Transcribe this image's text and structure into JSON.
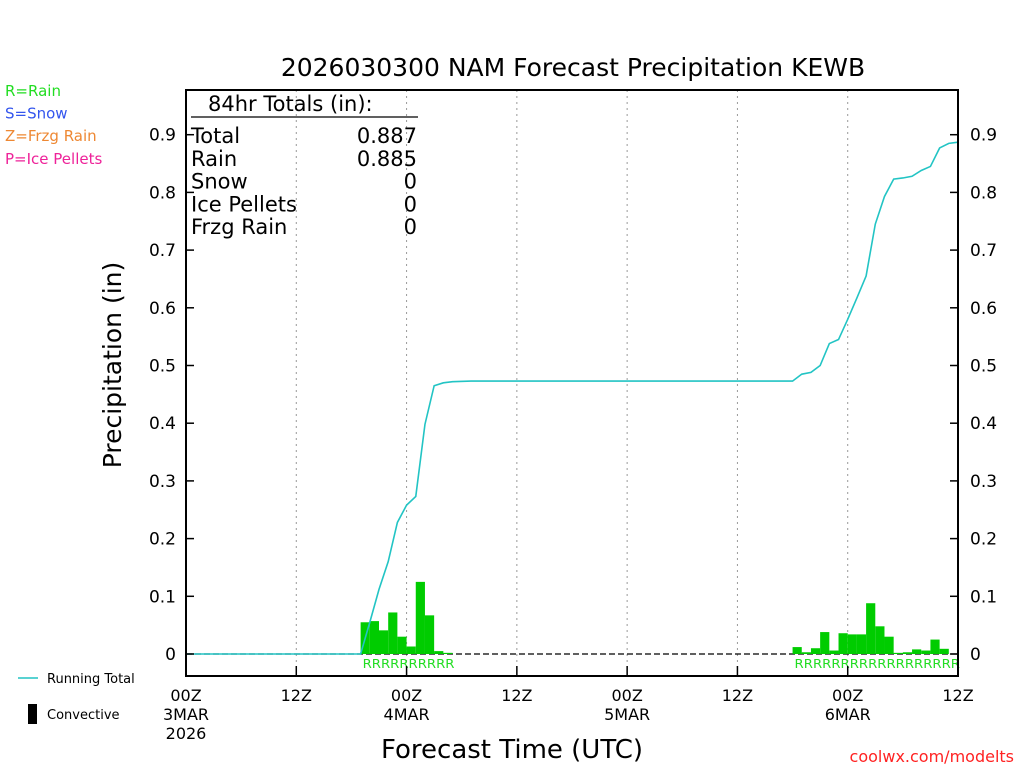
{
  "chart_data": {
    "type": "bar+line",
    "title": "2026030300 NAM Forecast Precipitation KEWB",
    "xlabel": "Forecast Time (UTC)",
    "ylabel": "Precipitation (in)",
    "ylim": [
      -0.037,
      0.96
    ],
    "xlim": [
      0,
      84
    ],
    "y_ticks": [
      "0",
      "0.1",
      "0.2",
      "0.3",
      "0.4",
      "0.5",
      "0.6",
      "0.7",
      "0.8",
      "0.9"
    ],
    "x_ticks": [
      {
        "hour": 0,
        "label": "00Z",
        "sub1": "3MAR",
        "sub2": "2026"
      },
      {
        "hour": 12,
        "label": "12Z",
        "sub1": "",
        "sub2": ""
      },
      {
        "hour": 24,
        "label": "00Z",
        "sub1": "4MAR",
        "sub2": ""
      },
      {
        "hour": 36,
        "label": "12Z",
        "sub1": "",
        "sub2": ""
      },
      {
        "hour": 48,
        "label": "00Z",
        "sub1": "5MAR",
        "sub2": ""
      },
      {
        "hour": 60,
        "label": "12Z",
        "sub1": "",
        "sub2": ""
      },
      {
        "hour": 72,
        "label": "00Z",
        "sub1": "6MAR",
        "sub2": ""
      },
      {
        "hour": 84,
        "label": "12Z",
        "sub1": "",
        "sub2": ""
      }
    ],
    "grid": "vertical dotted every 12 hours",
    "legend_types": [
      {
        "text": "R=Rain",
        "color": "#22dd22"
      },
      {
        "text": "S=Snow",
        "color": "#3355ee"
      },
      {
        "text": "Z=Frzg Rain",
        "color": "#ee8833"
      },
      {
        "text": "P=Ice Pellets",
        "color": "#ee2299"
      }
    ],
    "legend_series": [
      {
        "text": "Running Total",
        "color": "#22c4c4",
        "kind": "line"
      },
      {
        "text": "Convective",
        "color": "#000000",
        "kind": "bar"
      }
    ],
    "totals": {
      "header": "84hr Totals (in):",
      "rows": [
        {
          "label": "Total",
          "value": "0.887"
        },
        {
          "label": "Rain",
          "value": "0.885"
        },
        {
          "label": "Snow",
          "value": "0"
        },
        {
          "label": "Ice Pellets",
          "value": "0"
        },
        {
          "label": "Frzg Rain",
          "value": "0"
        }
      ]
    },
    "series": [
      {
        "name": "Hourly Precipitation",
        "type": "bar",
        "color": "#00cc00",
        "points": [
          {
            "x": 20,
            "y": 0.055
          },
          {
            "x": 21,
            "y": 0.057
          },
          {
            "x": 22,
            "y": 0.041
          },
          {
            "x": 23,
            "y": 0.072
          },
          {
            "x": 24,
            "y": 0.03
          },
          {
            "x": 25,
            "y": 0.013
          },
          {
            "x": 26,
            "y": 0.125
          },
          {
            "x": 27,
            "y": 0.067
          },
          {
            "x": 28,
            "y": 0.005
          },
          {
            "x": 29,
            "y": 0.002
          },
          {
            "x": 67,
            "y": 0.012
          },
          {
            "x": 68,
            "y": 0.003
          },
          {
            "x": 69,
            "y": 0.01
          },
          {
            "x": 70,
            "y": 0.038
          },
          {
            "x": 71,
            "y": 0.006
          },
          {
            "x": 72,
            "y": 0.036
          },
          {
            "x": 73,
            "y": 0.034
          },
          {
            "x": 74,
            "y": 0.034
          },
          {
            "x": 75,
            "y": 0.088
          },
          {
            "x": 76,
            "y": 0.048
          },
          {
            "x": 77,
            "y": 0.03
          },
          {
            "x": 78,
            "y": 0.002
          },
          {
            "x": 79,
            "y": 0.003
          },
          {
            "x": 80,
            "y": 0.008
          },
          {
            "x": 81,
            "y": 0.006
          },
          {
            "x": 82,
            "y": 0.025
          },
          {
            "x": 83,
            "y": 0.009
          }
        ]
      },
      {
        "name": "Running Total",
        "type": "line",
        "color": "#22c4c4",
        "x": [
          0,
          19,
          20,
          21,
          22,
          23,
          24,
          25,
          26,
          27,
          28,
          29,
          31,
          66,
          67,
          68,
          69,
          70,
          71,
          72,
          73,
          74,
          75,
          76,
          77,
          78,
          79,
          80,
          81,
          82,
          83,
          84
        ],
        "y": [
          0,
          0,
          0.055,
          0.112,
          0.16,
          0.228,
          0.258,
          0.273,
          0.398,
          0.465,
          0.47,
          0.472,
          0.473,
          0.473,
          0.485,
          0.488,
          0.5,
          0.538,
          0.545,
          0.58,
          0.617,
          0.655,
          0.745,
          0.793,
          0.823,
          0.825,
          0.828,
          0.838,
          0.845,
          0.877,
          0.885,
          0.887
        ]
      }
    ],
    "ptype_rows": [
      {
        "start_hour": 19,
        "text": "RRRRRRRRRR",
        "color": "#22dd22"
      },
      {
        "start_hour": 66,
        "text": "RRRRRRRRRRRRRRRRRR",
        "color": "#22dd22"
      }
    ]
  },
  "credit": "coolwx.com/modelts"
}
